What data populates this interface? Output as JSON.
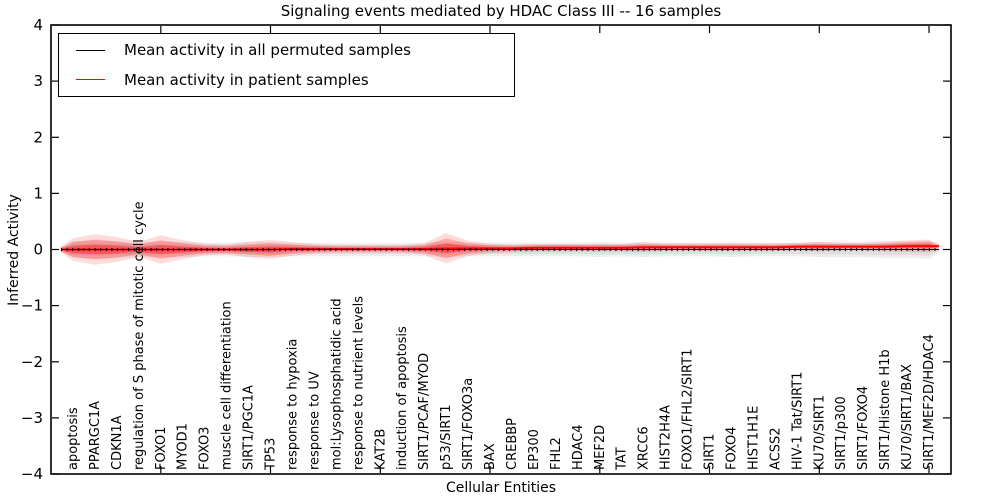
{
  "chart_data": {
    "type": "area",
    "title": "Signaling events mediated by HDAC Class III -- 16 samples",
    "xlabel": "Cellular Entities",
    "ylabel": "Inferred Activity",
    "ylim": [
      -4,
      4
    ],
    "yticks": [
      4,
      3,
      2,
      1,
      0,
      -1,
      -2,
      -3,
      -4
    ],
    "ytick_labels": [
      "4",
      "3",
      "2",
      "1",
      "0",
      "−1",
      "−2",
      "−3",
      "−4"
    ],
    "xlim": [
      0,
      41
    ],
    "xticks": [
      5,
      10,
      15,
      20,
      25,
      30,
      35,
      40
    ],
    "grid": false,
    "legend_position": "upper-left",
    "categories": [
      "apoptosis",
      "PPARGC1A",
      "CDKN1A",
      "regulation of S phase of mitotic cell cycle",
      "FOXO1",
      "MYOD1",
      "FOXO3",
      "muscle cell differentiation",
      "SIRT1/PGC1A",
      "TP53",
      "response to hypoxia",
      "response to UV",
      "mol:Lysophosphatidic acid",
      "response to nutrient levels",
      "KAT2B",
      "induction of apoptosis",
      "SIRT1/PCAF/MYOD",
      "p53/SIRT1",
      "SIRT1/FOXO3a",
      "BAX",
      "CREBBP",
      "EP300",
      "FHL2",
      "HDAC4",
      "MEF2D",
      "TAT",
      "XRCC6",
      "HIST2H4A",
      "FOXO1/FHL2/SIRT1",
      "SIRT1",
      "FOXO4",
      "HIST1H1E",
      "ACSS2",
      "HIV-1 Tat/SIRT1",
      "KU70/SIRT1",
      "SIRT1/p300",
      "SIRT1/FOXO4",
      "SIRT1/Histone H1b",
      "KU70/SIRT1/BAX",
      "SIRT1/MEF2D/HDAC4"
    ],
    "series": [
      {
        "name": "Mean activity in all permuted samples",
        "color": "#000000",
        "band_color": "#e0e0e0",
        "line_style": "dotted",
        "mean": [
          0,
          0,
          0,
          0,
          0,
          0,
          0,
          0,
          0,
          0,
          0,
          0,
          0,
          0,
          0,
          0,
          0,
          0,
          0,
          0,
          0,
          0,
          0,
          0,
          0,
          0,
          0,
          0,
          0,
          0,
          0,
          0,
          0,
          0,
          0,
          0,
          0,
          0,
          0,
          0
        ],
        "spread": [
          0.1,
          0.11,
          0.1,
          0.09,
          0.09,
          0.09,
          0.08,
          0.08,
          0.09,
          0.09,
          0.08,
          0.08,
          0.08,
          0.08,
          0.08,
          0.08,
          0.08,
          0.09,
          0.08,
          0.08,
          0.08,
          0.08,
          0.08,
          0.08,
          0.09,
          0.08,
          0.09,
          0.08,
          0.08,
          0.08,
          0.09,
          0.08,
          0.08,
          0.08,
          0.09,
          0.09,
          0.09,
          0.1,
          0.1,
          0.11
        ]
      },
      {
        "name": "Mean activity in patient samples",
        "color": "#ff0000",
        "band_color": "#ff0000",
        "line_style": "solid",
        "mean": [
          0,
          0,
          0,
          0,
          0,
          0,
          0,
          0,
          0,
          0,
          0.01,
          0.01,
          0.01,
          0.01,
          0.01,
          0.01,
          0.01,
          0.02,
          0.02,
          0.02,
          0.02,
          0.03,
          0.03,
          0.03,
          0.03,
          0.03,
          0.04,
          0.04,
          0.04,
          0.04,
          0.04,
          0.04,
          0.04,
          0.05,
          0.05,
          0.05,
          0.05,
          0.05,
          0.06,
          0.06
        ],
        "spread": [
          0.12,
          0.16,
          0.13,
          0.08,
          0.15,
          0.1,
          0.06,
          0.05,
          0.08,
          0.1,
          0.07,
          0.05,
          0.04,
          0.04,
          0.04,
          0.04,
          0.06,
          0.16,
          0.08,
          0.05,
          0.04,
          0.04,
          0.04,
          0.04,
          0.04,
          0.04,
          0.05,
          0.04,
          0.04,
          0.04,
          0.04,
          0.04,
          0.04,
          0.04,
          0.05,
          0.04,
          0.04,
          0.05,
          0.06,
          0.07
        ]
      }
    ],
    "colors": {
      "frame": "#000000",
      "background": "#ffffff",
      "permuted_band": "#e0e0e0",
      "patient_band": "#ff0000"
    }
  }
}
